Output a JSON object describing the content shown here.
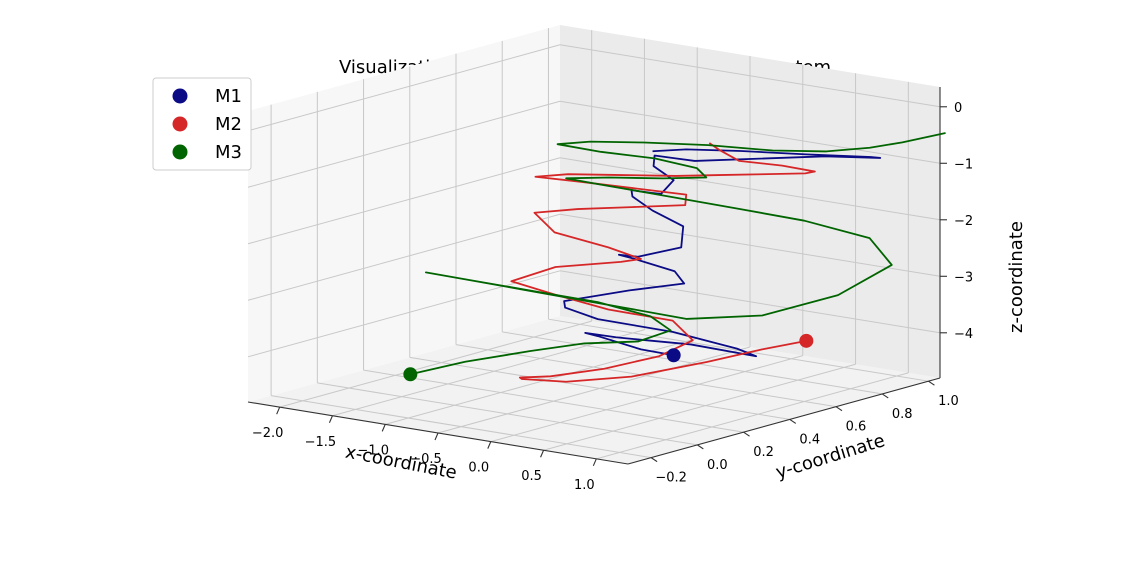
{
  "chart_data": {
    "type": "line3d",
    "title": "Visualization of Orbits of Stars in a Three-body System",
    "xlabel": "x-coordinate",
    "ylabel": "y-coordinate",
    "zlabel": "z-coordinate",
    "xlim": [
      -2.3,
      1.3
    ],
    "ylim": [
      -0.3,
      1.05
    ],
    "zlim": [
      -4.8,
      0.35
    ],
    "x_ticks": [
      -2.0,
      -1.5,
      -1.0,
      -0.5,
      0.0,
      0.5,
      1.0
    ],
    "x_tick_labels": [
      "−2.0",
      "−1.5",
      "−1.0",
      "−0.5",
      "0.0",
      "0.5",
      "1.0"
    ],
    "y_ticks": [
      -0.2,
      0.0,
      0.2,
      0.4,
      0.6,
      0.8,
      1.0
    ],
    "y_tick_labels": [
      "−0.2",
      "0.0",
      "0.2",
      "0.4",
      "0.6",
      "0.8",
      "1.0"
    ],
    "z_ticks": [
      0,
      -1,
      -2,
      -3,
      -4
    ],
    "z_tick_labels": [
      "0",
      "−1",
      "−2",
      "−3",
      "−4"
    ],
    "grid": true,
    "legend_position": "top-left",
    "series": [
      {
        "name": "M1",
        "color": "#0b0b85",
        "marker_position": [
          0.2,
          0.4,
          -4.0
        ],
        "x": [
          0.2,
          0.0,
          -0.3,
          -0.2,
          0.2,
          0.4,
          0.8,
          1.2,
          0.8,
          0.3,
          -0.3,
          -0.5,
          -0.4,
          0.0,
          0.3,
          0.1,
          -0.2,
          -0.1,
          0.3,
          0.6,
          0.4,
          0.0,
          -0.3,
          -0.2,
          0.1,
          0.3,
          0.2,
          -0.1,
          -0.2,
          0.1,
          0.4,
          0.8,
          1.2,
          1.5,
          1.3,
          0.8,
          0.4,
          0.1,
          0.0
        ],
        "y": [
          0.4,
          0.35,
          0.3,
          0.2,
          0.15,
          0.1,
          0.2,
          0.3,
          0.4,
          0.35,
          0.3,
          0.25,
          0.2,
          0.3,
          0.4,
          0.45,
          0.4,
          0.3,
          0.2,
          0.25,
          0.35,
          0.4,
          0.45,
          0.4,
          0.35,
          0.3,
          0.4,
          0.45,
          0.5,
          0.45,
          0.4,
          0.5,
          0.6,
          0.7,
          0.75,
          0.7,
          0.6,
          0.5,
          0.4
        ],
        "z": [
          -4.0,
          -3.9,
          -3.7,
          -3.5,
          -3.4,
          -3.3,
          -3.4,
          -3.6,
          -3.7,
          -3.5,
          -3.4,
          -3.2,
          -3.0,
          -2.8,
          -2.7,
          -2.6,
          -2.4,
          -2.2,
          -2.0,
          -1.8,
          -1.6,
          -1.5,
          -1.4,
          -1.2,
          -1.1,
          -1.0,
          -0.9,
          -0.8,
          -0.7,
          -0.6,
          -0.5,
          -0.45,
          -0.4,
          -0.45,
          -0.55,
          -0.6,
          -0.55,
          -0.5,
          -0.45
        ]
      },
      {
        "name": "M2",
        "color": "#d62728",
        "marker_position": [
          0.8,
          0.7,
          -3.9
        ],
        "x": [
          0.8,
          0.6,
          0.3,
          -0.2,
          -0.6,
          -0.8,
          -0.6,
          -0.2,
          0.2,
          0.5,
          0.6,
          0.3,
          -0.2,
          -0.6,
          -0.9,
          -0.7,
          -0.3,
          0.0,
          -0.2,
          -0.6,
          -0.9,
          -0.6,
          -0.2,
          0.2,
          0.1,
          -0.3,
          -0.7,
          -1.0,
          -0.8,
          -0.4,
          0.0,
          0.3,
          0.6,
          0.9,
          1.1,
          0.9,
          0.6,
          0.3,
          0.1
        ],
        "y": [
          0.7,
          0.6,
          0.5,
          0.4,
          0.3,
          0.2,
          0.1,
          0.05,
          0.1,
          0.2,
          0.3,
          0.35,
          0.3,
          0.25,
          0.2,
          0.3,
          0.4,
          0.35,
          0.3,
          0.25,
          0.3,
          0.35,
          0.4,
          0.45,
          0.5,
          0.45,
          0.4,
          0.35,
          0.4,
          0.45,
          0.5,
          0.55,
          0.6,
          0.65,
          0.6,
          0.55,
          0.5,
          0.55,
          0.6
        ],
        "z": [
          -3.9,
          -4.0,
          -4.2,
          -4.5,
          -4.6,
          -4.5,
          -4.3,
          -4.1,
          -3.9,
          -3.7,
          -3.5,
          -3.3,
          -3.2,
          -3.0,
          -2.8,
          -2.6,
          -2.5,
          -2.3,
          -2.1,
          -1.9,
          -1.7,
          -1.6,
          -1.5,
          -1.4,
          -1.3,
          -1.25,
          -1.2,
          -1.15,
          -1.1,
          -1.05,
          -1.0,
          -0.95,
          -0.9,
          -0.85,
          -0.7,
          -0.6,
          -0.55,
          -0.5,
          -0.5
        ]
      },
      {
        "name": "M3",
        "color": "#006400",
        "marker_position": [
          -1.2,
          -0.1,
          -4.2
        ],
        "x": [
          -1.2,
          -0.9,
          -0.5,
          -0.1,
          0.3,
          0.5,
          0.2,
          -0.3,
          -0.8,
          -1.3,
          -1.6,
          -1.3,
          -0.8,
          -0.3,
          0.1,
          0.6,
          1.1,
          1.5,
          1.4,
          1.0,
          0.6,
          0.3,
          0.0,
          -0.4,
          -0.6,
          -0.3,
          0.1,
          0.4,
          0.2,
          -0.2,
          -0.6,
          -0.9,
          -0.7,
          -0.3,
          0.2,
          0.7,
          1.1,
          1.4,
          1.6,
          1.9
        ],
        "y": [
          -0.1,
          0.0,
          0.1,
          0.15,
          0.2,
          0.25,
          0.3,
          0.3,
          0.25,
          0.2,
          0.15,
          0.2,
          0.3,
          0.4,
          0.5,
          0.6,
          0.7,
          0.75,
          0.7,
          0.6,
          0.5,
          0.45,
          0.4,
          0.35,
          0.3,
          0.35,
          0.4,
          0.45,
          0.5,
          0.5,
          0.45,
          0.4,
          0.45,
          0.5,
          0.55,
          0.6,
          0.65,
          0.7,
          0.75,
          0.8
        ],
        "z": [
          -4.2,
          -4.0,
          -3.8,
          -3.6,
          -3.5,
          -3.3,
          -3.2,
          -3.1,
          -3.0,
          -2.9,
          -2.8,
          -2.9,
          -3.1,
          -3.3,
          -3.5,
          -3.4,
          -3.0,
          -2.4,
          -1.9,
          -1.6,
          -1.4,
          -1.3,
          -1.2,
          -1.1,
          -1.0,
          -0.95,
          -0.9,
          -0.85,
          -0.8,
          -0.75,
          -0.7,
          -0.6,
          -0.55,
          -0.5,
          -0.45,
          -0.45,
          -0.4,
          -0.3,
          -0.2,
          0.0
        ]
      }
    ]
  }
}
